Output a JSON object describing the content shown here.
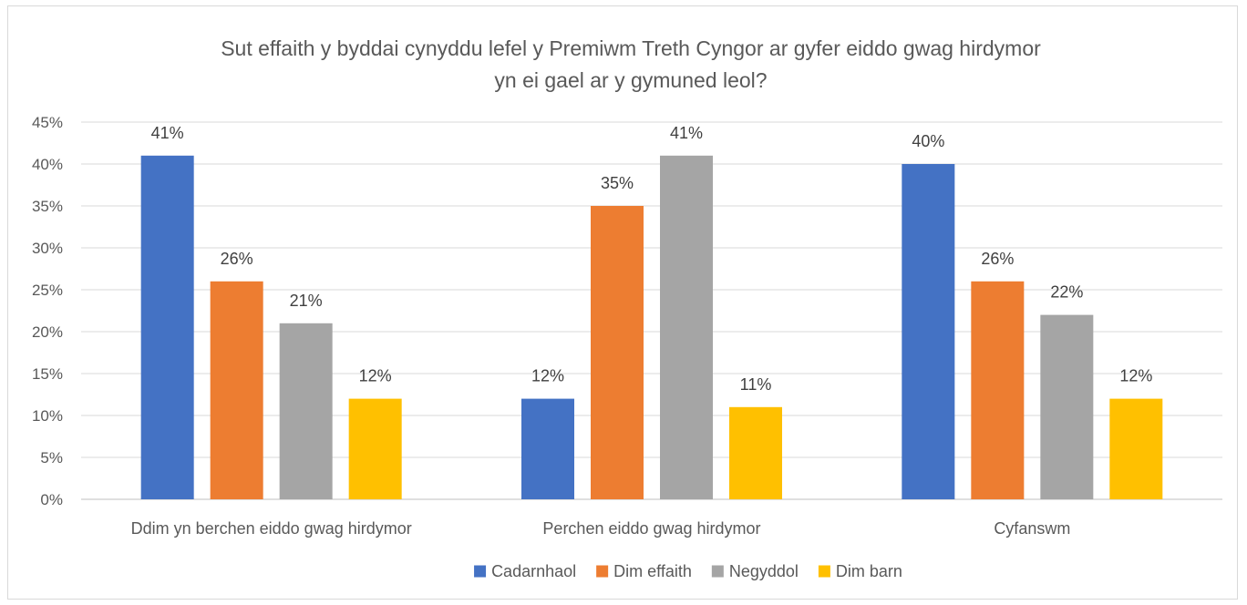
{
  "chart_data": {
    "type": "bar",
    "title_lines": [
      "Sut effaith y byddai cynyddu lefel y Premiwm Treth Cyngor ar gyfer eiddo gwag hirdymor",
      "yn ei gael ar y gymuned leol?"
    ],
    "categories": [
      "Ddim yn berchen eiddo gwag hirdymor",
      "Perchen eiddo gwag hirdymor",
      "Cyfanswm"
    ],
    "series": [
      {
        "name": "Cadarnhaol",
        "color": "#4472c4",
        "values": [
          41,
          12,
          40
        ],
        "labels": [
          "41%",
          "12%",
          "40%"
        ]
      },
      {
        "name": "Dim effaith",
        "color": "#ed7d31",
        "values": [
          26,
          35,
          26
        ],
        "labels": [
          "26%",
          "35%",
          "26%"
        ]
      },
      {
        "name": "Negyddol",
        "color": "#a5a5a5",
        "values": [
          21,
          41,
          22
        ],
        "labels": [
          "21%",
          "41%",
          "22%"
        ]
      },
      {
        "name": "Dim barn",
        "color": "#ffc000",
        "values": [
          12,
          11,
          12
        ],
        "labels": [
          "12%",
          "11%",
          "12%"
        ]
      }
    ],
    "ylim": [
      0,
      45
    ],
    "yticks": [
      "0%",
      "5%",
      "10%",
      "15%",
      "20%",
      "25%",
      "30%",
      "35%",
      "40%",
      "45%"
    ],
    "grid": true,
    "legend_position": "bottom"
  }
}
